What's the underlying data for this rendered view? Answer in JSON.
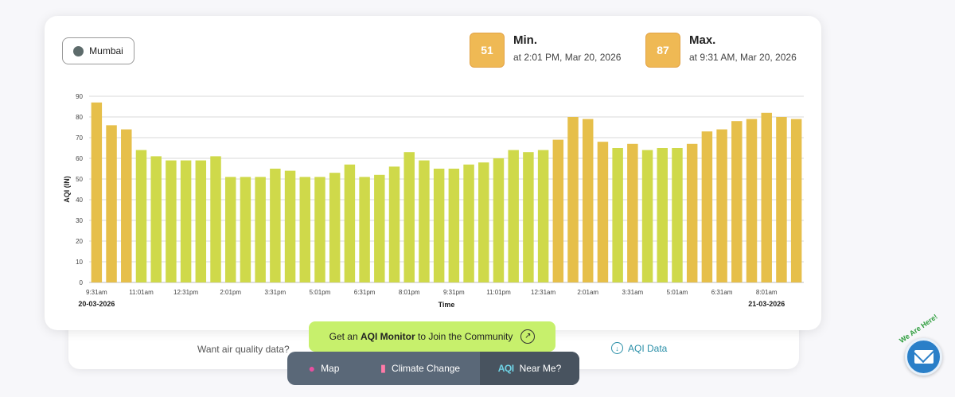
{
  "city": {
    "name": "Mumbai"
  },
  "min": {
    "value": "51",
    "label": "Min.",
    "time": "at 2:01 PM, Mar 20, 2026"
  },
  "max": {
    "value": "87",
    "label": "Max.",
    "time": "at 9:31 AM, Mar 20, 2026"
  },
  "chart_data": {
    "type": "bar",
    "ylabel": "AQI (IN)",
    "xlabel": "Time",
    "ylim": [
      0,
      90
    ],
    "yticks": [
      0,
      10,
      20,
      30,
      40,
      50,
      60,
      70,
      80,
      90
    ],
    "xtick_labels": [
      "9:31am",
      "11:01am",
      "12:31pm",
      "2:01pm",
      "3:31pm",
      "5:01pm",
      "6:31pm",
      "8:01pm",
      "9:31pm",
      "11:01pm",
      "12:31am",
      "2:01am",
      "3:31am",
      "5:01am",
      "6:31am",
      "8:01am"
    ],
    "date_labels": {
      "start": "20-03-2026",
      "end": "21-03-2026"
    },
    "grid": true,
    "values": [
      87,
      76,
      74,
      64,
      61,
      59,
      59,
      59,
      61,
      51,
      51,
      51,
      55,
      54,
      51,
      51,
      53,
      57,
      51,
      52,
      56,
      63,
      59,
      55,
      55,
      57,
      58,
      60,
      64,
      63,
      64,
      69,
      80,
      79,
      68,
      65,
      67,
      64,
      65,
      65,
      67,
      73,
      74,
      78,
      79,
      82,
      80,
      79
    ],
    "colors": {
      "moderate": "#e6bf4a",
      "satisfactory": "#cfd94a",
      "grid": "#d8d8d8"
    }
  },
  "cta": {
    "prefix": "Get an",
    "strong": "AQI Monitor",
    "suffix": "to Join the Community",
    "arrow_icon": "arrow-up-right-icon"
  },
  "bottom": {
    "want_text": "Want air quality data?",
    "aqi_data_label": "AQI Data"
  },
  "nav": {
    "map": "Map",
    "climate": "Climate Change",
    "near_logo": "AQI",
    "near": "Near Me?"
  },
  "widget": {
    "here_text": "We Are Here!"
  }
}
